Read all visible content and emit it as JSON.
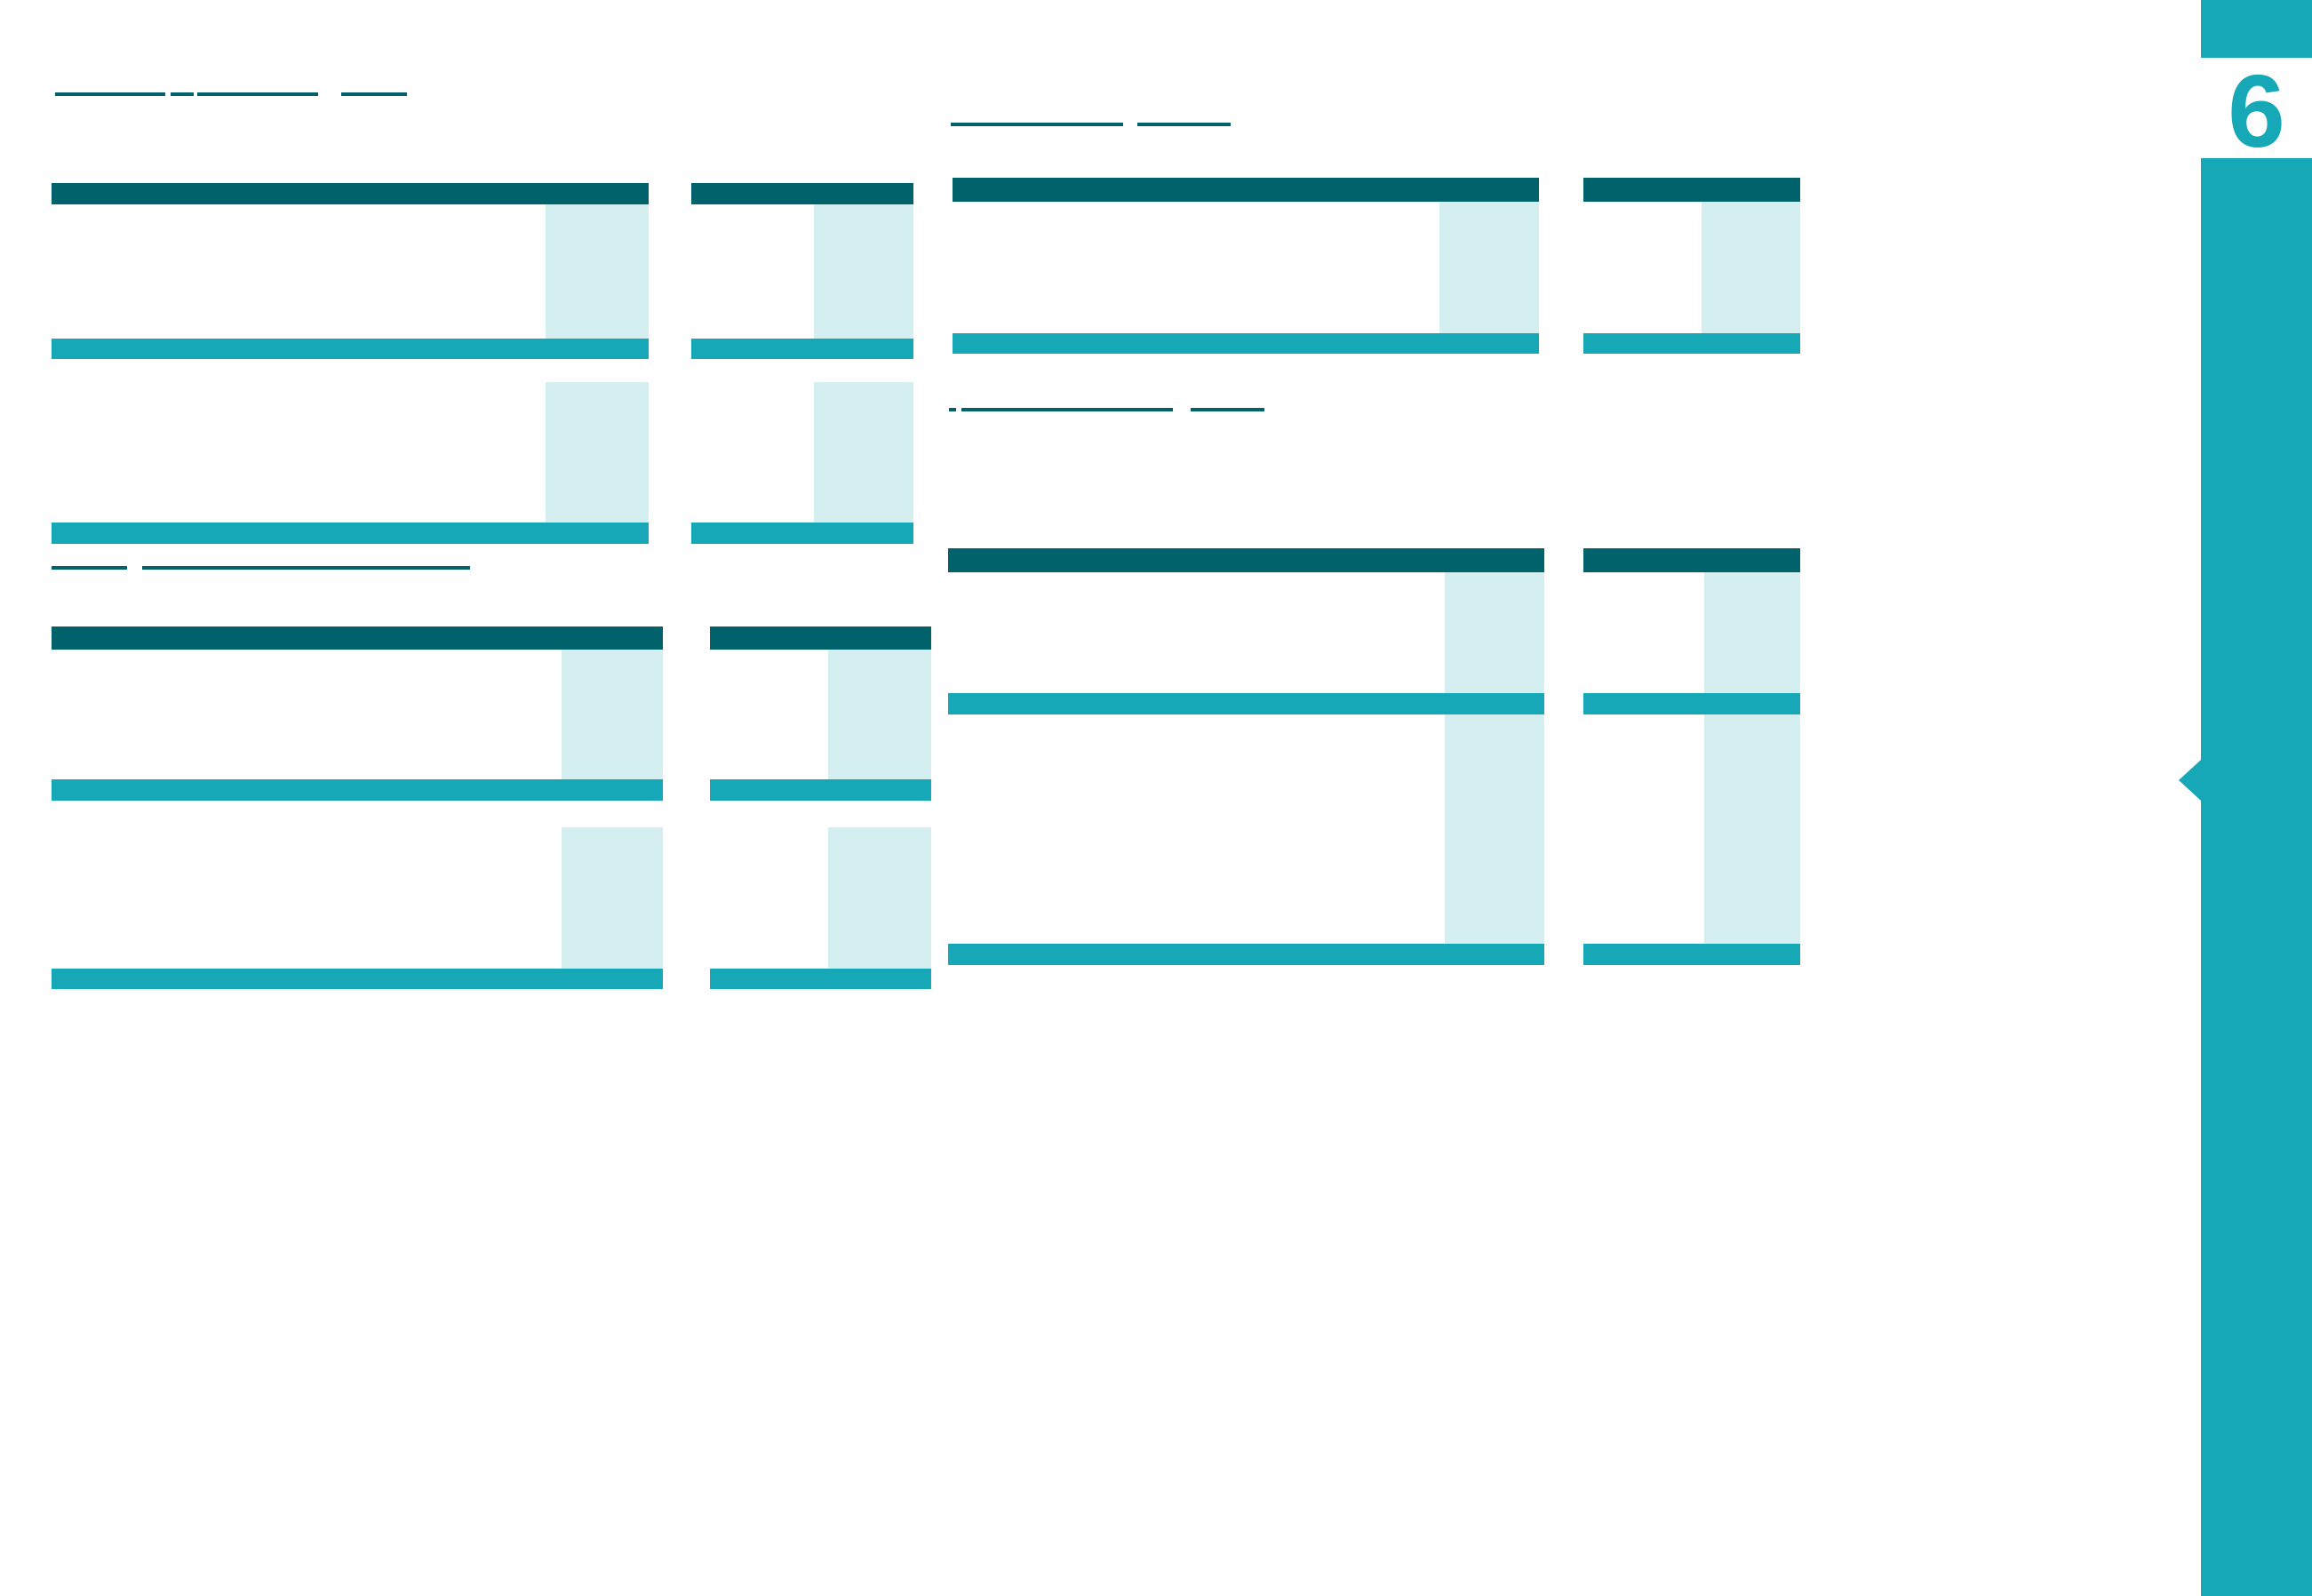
{
  "page": {
    "number": "6"
  },
  "colors": {
    "primary": "#16a8b6",
    "header_dark": "#00626b",
    "column_highlight": "#d5eef0"
  }
}
